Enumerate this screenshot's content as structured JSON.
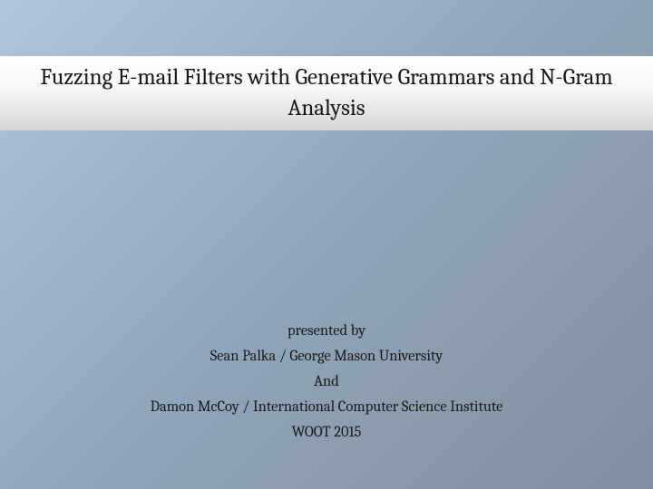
{
  "slide": {
    "background_gradient_start": "#afc5db",
    "background_gradient_end": "#7f8f9f",
    "title_banner": {
      "background_gradient_top": "#ffffff",
      "background_gradient_bottom": "#d6d6d6",
      "text": "Fuzzing E-mail Filters with Generative Grammars and N-Gram Analysis",
      "text_color": "#1a1a1a",
      "font_size_pt": 19
    },
    "body": {
      "lines": [
        "presented by",
        "Sean Palka / George Mason University",
        "And",
        "Damon McCoy / International Computer Science Institute",
        "WOOT 2015"
      ],
      "text_color": "#1a1a1a",
      "font_size_pt": 12
    }
  }
}
